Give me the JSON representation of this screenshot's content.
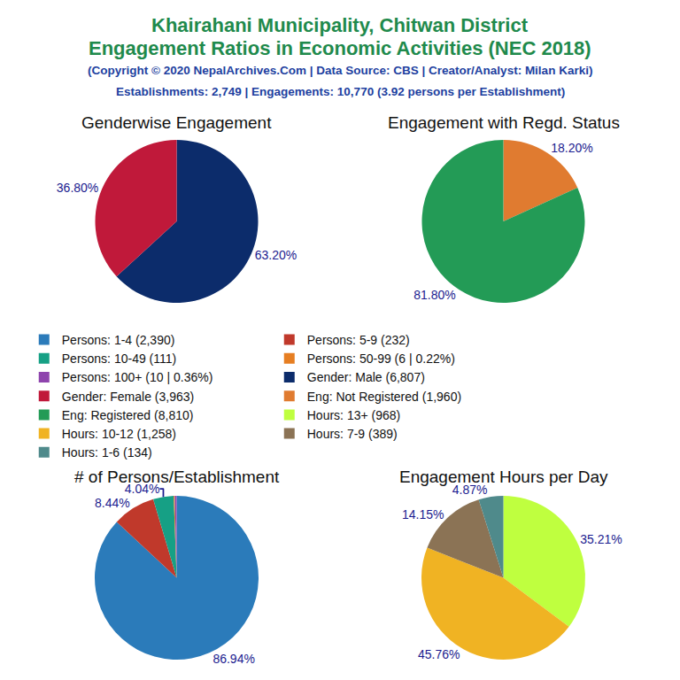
{
  "title": [
    "Khairahani Municipality, Chitwan District",
    "Engagement Ratios in Economic Activities (NEC 2018)"
  ],
  "subtitle": [
    "(Copyright © 2020 NepalArchives.Com | Data Source: CBS | Creator/Analyst: Milan Karki)",
    "Establishments: 2,749 | Engagements: 10,770 (3.92 persons per Establishment)"
  ],
  "chart_data": [
    {
      "type": "pie",
      "title": "# of Persons/Establishment",
      "categories": [
        "Persons: 1-4 (2,390)",
        "Persons: 5-9 (232)",
        "Persons: 10-49 (111)",
        "Persons: 50-99 (6 | 0.22%)",
        "Persons: 100+ (10 | 0.36%)"
      ],
      "values": [
        86.94,
        8.44,
        4.04,
        0.22,
        0.36
      ],
      "value_labels": [
        "86.94%",
        "8.44%",
        "4.04%",
        null,
        null
      ],
      "colors": [
        "#2b7bba",
        "#c0392b",
        "#16a085",
        "#e67e22",
        "#8e44ad"
      ],
      "data_labels": true,
      "legend": "center"
    },
    {
      "type": "pie",
      "title": "Genderwise Engagement",
      "categories": [
        "Gender: Male (6,807)",
        "Gender: Female (3,963)"
      ],
      "values": [
        63.2,
        36.8
      ],
      "value_labels": [
        "63.20%",
        "36.80%"
      ],
      "colors": [
        "#0c2c6b",
        "#c0193a"
      ],
      "data_labels": true,
      "legend": "center"
    },
    {
      "type": "pie",
      "title": "Engagement with Regd. Status",
      "categories": [
        "Eng: Not Registered (1,960)",
        "Eng: Registered (8,810)"
      ],
      "values": [
        18.2,
        81.8
      ],
      "value_labels": [
        "18.20%",
        "81.80%"
      ],
      "colors": [
        "#e07b30",
        "#239b56"
      ],
      "data_labels": true,
      "legend": "center"
    },
    {
      "type": "pie",
      "title": "Engagement Hours per Day",
      "categories": [
        "Hours: 13+ (968)",
        "Hours: 10-12 (1,258)",
        "Hours: 7-9 (389)",
        "Hours: 1-6 (134)"
      ],
      "values": [
        35.21,
        45.76,
        14.15,
        4.87
      ],
      "value_labels": [
        "35.21%",
        "45.76%",
        "14.15%",
        "4.87%"
      ],
      "colors": [
        "#bfff3f",
        "#f0b323",
        "#8b7355",
        "#4f8a8b"
      ],
      "data_labels": true,
      "legend": "center"
    }
  ]
}
